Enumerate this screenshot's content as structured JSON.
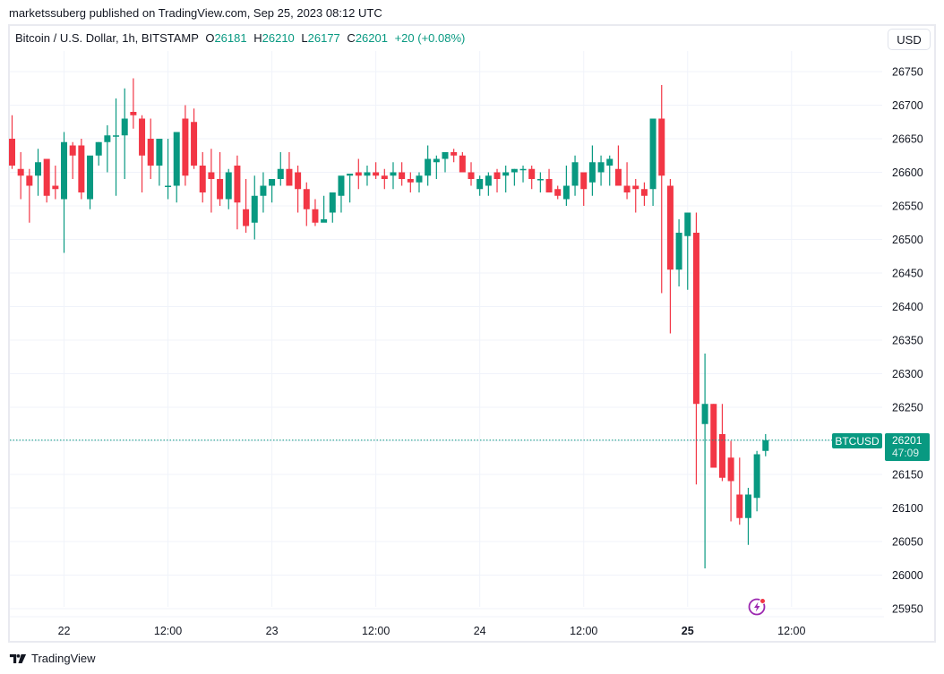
{
  "header": {
    "published": "marketssuberg published on TradingView.com, Sep 25, 2023 08:12 UTC"
  },
  "legend": {
    "symbol": "Bitcoin / U.S. Dollar, 1h, BITSTAMP",
    "open_label": "O",
    "open": "26181",
    "high_label": "H",
    "high": "26210",
    "low_label": "L",
    "low": "26177",
    "close_label": "C",
    "close": "26201",
    "change": "+20 (+0.08%)"
  },
  "currency_button": "USD",
  "price_tag": {
    "symbol": "BTCUSD",
    "price": "26201",
    "countdown": "47:09"
  },
  "footer": {
    "brand": "TradingView"
  },
  "colors": {
    "up": "#089981",
    "down": "#f23645",
    "grid": "#f0f3fa",
    "text": "#131722",
    "alert": "#9c27b0"
  },
  "chart_data": {
    "type": "candlestick",
    "title": "Bitcoin / U.S. Dollar, 1h, BITSTAMP",
    "xlabel": "",
    "ylabel": "USD",
    "ylim": [
      25925,
      26800
    ],
    "y_ticks": [
      25950,
      26000,
      26050,
      26100,
      26150,
      26200,
      26250,
      26300,
      26350,
      26400,
      26450,
      26500,
      26550,
      26600,
      26650,
      26700,
      26750
    ],
    "x_ticks": [
      {
        "label": "22",
        "index": 6,
        "bold": false
      },
      {
        "label": "12:00",
        "index": 18,
        "bold": false
      },
      {
        "label": "23",
        "index": 30,
        "bold": false
      },
      {
        "label": "12:00",
        "index": 42,
        "bold": false
      },
      {
        "label": "24",
        "index": 54,
        "bold": false
      },
      {
        "label": "12:00",
        "index": 66,
        "bold": false
      },
      {
        "label": "25",
        "index": 78,
        "bold": true
      },
      {
        "label": "12:00",
        "index": 90,
        "bold": false
      }
    ],
    "grid": true,
    "last_price": 26201,
    "candles": [
      [
        26650,
        26685,
        26605,
        26610
      ],
      [
        26605,
        26630,
        26560,
        26595
      ],
      [
        26595,
        26605,
        26525,
        26580
      ],
      [
        26595,
        26635,
        26565,
        26615
      ],
      [
        26620,
        26620,
        26555,
        26565
      ],
      [
        26580,
        26610,
        26560,
        26575
      ],
      [
        26560,
        26660,
        26480,
        26645
      ],
      [
        26640,
        26645,
        26590,
        26625
      ],
      [
        26640,
        26650,
        26560,
        26570
      ],
      [
        26560,
        26615,
        26545,
        26625
      ],
      [
        26625,
        26645,
        26610,
        26645
      ],
      [
        26645,
        26670,
        26600,
        26655
      ],
      [
        26655,
        26710,
        26565,
        26655
      ],
      [
        26655,
        26725,
        26590,
        26680
      ],
      [
        26690,
        26740,
        26665,
        26685
      ],
      [
        26680,
        26685,
        26570,
        26625
      ],
      [
        26650,
        26680,
        26590,
        26610
      ],
      [
        26610,
        26640,
        26580,
        26650
      ],
      [
        26580,
        26650,
        26560,
        26580
      ],
      [
        26580,
        26655,
        26555,
        26660
      ],
      [
        26680,
        26700,
        26580,
        26595
      ],
      [
        26675,
        26695,
        26605,
        26610
      ],
      [
        26610,
        26630,
        26555,
        26570
      ],
      [
        26600,
        26635,
        26540,
        26590
      ],
      [
        26590,
        26630,
        26550,
        26560
      ],
      [
        26560,
        26605,
        26545,
        26600
      ],
      [
        26610,
        26625,
        26515,
        26555
      ],
      [
        26545,
        26590,
        26510,
        26520
      ],
      [
        26525,
        26595,
        26500,
        26565
      ],
      [
        26565,
        26600,
        26540,
        26580
      ],
      [
        26580,
        26590,
        26555,
        26590
      ],
      [
        26590,
        26630,
        26580,
        26605
      ],
      [
        26605,
        26630,
        26580,
        26580
      ],
      [
        26600,
        26610,
        26540,
        26575
      ],
      [
        26575,
        26585,
        26520,
        26545
      ],
      [
        26545,
        26560,
        26520,
        26525
      ],
      [
        26525,
        26565,
        26530,
        26530
      ],
      [
        26540,
        26565,
        26525,
        26570
      ],
      [
        26565,
        26585,
        26540,
        26595
      ],
      [
        26595,
        26595,
        26555,
        26598
      ],
      [
        26600,
        26620,
        26575,
        26595
      ],
      [
        26595,
        26610,
        26580,
        26600
      ],
      [
        26600,
        26615,
        26590,
        26595
      ],
      [
        26595,
        26605,
        26575,
        26590
      ],
      [
        26595,
        26615,
        26575,
        26600
      ],
      [
        26600,
        26615,
        26580,
        26590
      ],
      [
        26590,
        26600,
        26570,
        26585
      ],
      [
        26585,
        26600,
        26570,
        26595
      ],
      [
        26595,
        26640,
        26580,
        26620
      ],
      [
        26615,
        26625,
        26590,
        26620
      ],
      [
        26620,
        26630,
        26600,
        26630
      ],
      [
        26630,
        26635,
        26615,
        26625
      ],
      [
        26625,
        26630,
        26600,
        26600
      ],
      [
        26600,
        26615,
        26580,
        26590
      ],
      [
        26575,
        26595,
        26565,
        26590
      ],
      [
        26580,
        26600,
        26565,
        26595
      ],
      [
        26600,
        26605,
        26570,
        26590
      ],
      [
        26595,
        26610,
        26570,
        26600
      ],
      [
        26600,
        26605,
        26580,
        26605
      ],
      [
        26605,
        26610,
        26585,
        26605
      ],
      [
        26605,
        26610,
        26575,
        26590
      ],
      [
        26590,
        26600,
        26570,
        26590
      ],
      [
        26590,
        26605,
        26570,
        26570
      ],
      [
        26575,
        26580,
        26560,
        26565
      ],
      [
        26560,
        26610,
        26550,
        26580
      ],
      [
        26580,
        26625,
        26565,
        26615
      ],
      [
        26600,
        26600,
        26550,
        26575
      ],
      [
        26585,
        26640,
        26565,
        26615
      ],
      [
        26600,
        26625,
        26580,
        26615
      ],
      [
        26610,
        26625,
        26580,
        26620
      ],
      [
        26605,
        26640,
        26580,
        26580
      ],
      [
        26580,
        26615,
        26560,
        26570
      ],
      [
        26580,
        26590,
        26540,
        26575
      ],
      [
        26575,
        26585,
        26550,
        26565
      ],
      [
        26575,
        26660,
        26550,
        26680
      ],
      [
        26680,
        26730,
        26420,
        26595
      ],
      [
        26580,
        26590,
        26360,
        26455
      ],
      [
        26455,
        26530,
        26430,
        26510
      ],
      [
        26505,
        26540,
        26425,
        26540
      ],
      [
        26510,
        26540,
        26135,
        26255
      ],
      [
        26225,
        26330,
        26010,
        26255
      ],
      [
        26255,
        26255,
        26165,
        26160
      ],
      [
        26210,
        26255,
        26140,
        26145
      ],
      [
        26175,
        26200,
        26080,
        26140
      ],
      [
        26120,
        26175,
        26075,
        26085
      ],
      [
        26085,
        26130,
        26045,
        26120
      ],
      [
        26115,
        26185,
        26095,
        26180
      ],
      [
        26185,
        26210,
        26177,
        26201
      ]
    ]
  }
}
